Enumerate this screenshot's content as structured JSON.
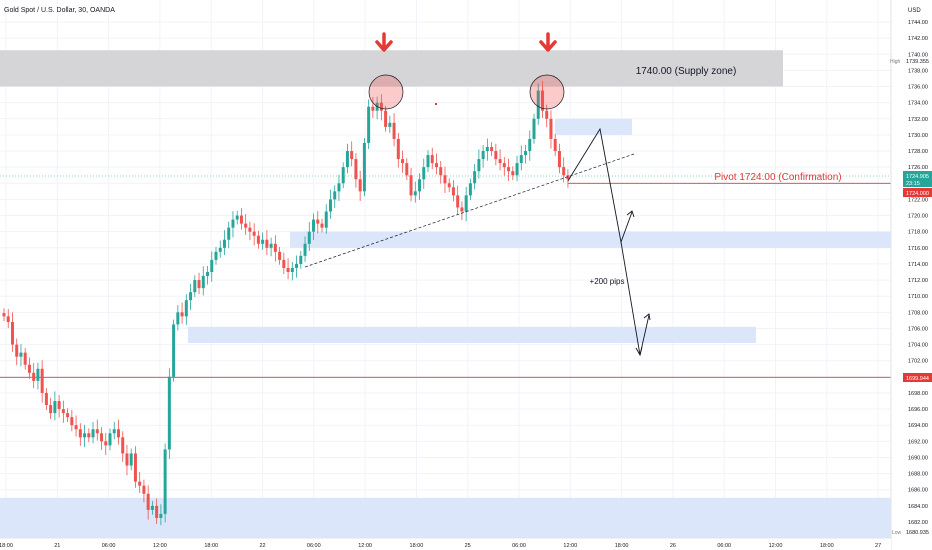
{
  "header": {
    "title": "Gold Spot / U.S. Dollar, 30, OANDA",
    "currency": "USD"
  },
  "colors": {
    "up": "#26a69a",
    "down": "#ef5350",
    "zone_blue": "#dbe6fb",
    "supply_grey": "#d5d5d7",
    "pivot_red": "#e53935",
    "arrow_red": "#e53935",
    "last_price_bg": "#26a69a",
    "pivot_label_bg": "#e53935",
    "support_label_bg": "#e53935"
  },
  "annotations": {
    "supply_zone_label": "1740.00 (Supply zone)",
    "pivot_label": "Pivot 1724.00 (Confirmation)",
    "pips_label": "+200 pips"
  },
  "price_labels": {
    "high_tag": "High",
    "high_value": "1739.355",
    "last_value": "1724.905",
    "countdown": "23:15",
    "pivot_value": "1724.000",
    "support_value": "1699.944",
    "low_tag": "Low",
    "low_value": "1680.935"
  },
  "chart_data": {
    "type": "candlestick",
    "title": "Gold Spot / U.S. Dollar, 30, OANDA",
    "y_unit": "USD",
    "ylim": [
      1680,
      1746
    ],
    "y_ticks": [
      1682,
      1684,
      1686,
      1688,
      1690,
      1692,
      1694,
      1696,
      1698,
      1700,
      1702,
      1704,
      1706,
      1708,
      1710,
      1712,
      1714,
      1716,
      1718,
      1720,
      1722,
      1724,
      1726,
      1728,
      1730,
      1732,
      1734,
      1736,
      1738,
      1740,
      1742,
      1744
    ],
    "x_ticks": [
      "18:00",
      "21",
      "06:00",
      "12:00",
      "18:00",
      "22",
      "06:00",
      "12:00",
      "18:00",
      "25",
      "06:00",
      "12:00",
      "18:00",
      "26",
      "06:00",
      "12:00",
      "18:00",
      "27"
    ],
    "closes": [
      1707.5,
      1706.8,
      1704.0,
      1702.5,
      1703.0,
      1701.5,
      1700.5,
      1699.5,
      1701.0,
      1698.0,
      1696.5,
      1695.5,
      1697.0,
      1696.0,
      1695.5,
      1695.0,
      1694.0,
      1693.5,
      1692.5,
      1693.0,
      1692.5,
      1693.5,
      1693.0,
      1692.0,
      1691.5,
      1693.0,
      1693.5,
      1692.5,
      1690.5,
      1689.0,
      1690.5,
      1687.0,
      1686.5,
      1685.5,
      1683.5,
      1684.0,
      1682.5,
      1683.0,
      1691.0,
      1700.0,
      1706.5,
      1708.0,
      1707.5,
      1709.5,
      1710.5,
      1712.0,
      1711.0,
      1712.5,
      1713.0,
      1714.5,
      1715.5,
      1716.0,
      1717.0,
      1718.5,
      1719.5,
      1720.0,
      1719.0,
      1718.5,
      1718.0,
      1717.5,
      1716.5,
      1717.0,
      1716.0,
      1716.5,
      1715.5,
      1714.5,
      1713.5,
      1713.0,
      1713.5,
      1714.0,
      1715.0,
      1716.5,
      1718.0,
      1719.5,
      1719.0,
      1718.5,
      1720.5,
      1722.0,
      1723.0,
      1724.0,
      1726.0,
      1728.0,
      1727.0,
      1724.5,
      1723.0,
      1729.0,
      1733.5,
      1733.0,
      1734.0,
      1733.0,
      1731.0,
      1731.5,
      1729.5,
      1727.0,
      1726.5,
      1725.0,
      1722.5,
      1723.0,
      1724.5,
      1726.0,
      1727.5,
      1726.5,
      1726.0,
      1725.0,
      1724.0,
      1723.5,
      1722.5,
      1721.0,
      1720.5,
      1722.5,
      1724.0,
      1725.5,
      1727.0,
      1728.0,
      1728.5,
      1728.0,
      1727.0,
      1726.5,
      1726.0,
      1725.5,
      1725.0,
      1726.5,
      1727.5,
      1728.0,
      1729.5,
      1732.0,
      1735.5,
      1733.0,
      1732.0,
      1729.5,
      1728.0,
      1726.0,
      1725.0,
      1724.5
    ],
    "annotations": [
      "1740.00 (Supply zone)",
      "Pivot 1724.00 (Confirmation)",
      "+200 pips"
    ],
    "levels": {
      "supply_zone": [
        1736.0,
        1740.5
      ],
      "pivot": 1724.0,
      "support_line": 1699.944,
      "current": 1724.905,
      "demand_zones": [
        [
          1730.0,
          1732.0
        ],
        [
          1716.0,
          1718.0
        ],
        [
          1704.2,
          1706.2
        ],
        [
          1680.0,
          1685.0
        ]
      ]
    },
    "legend": "none",
    "grid": true
  }
}
